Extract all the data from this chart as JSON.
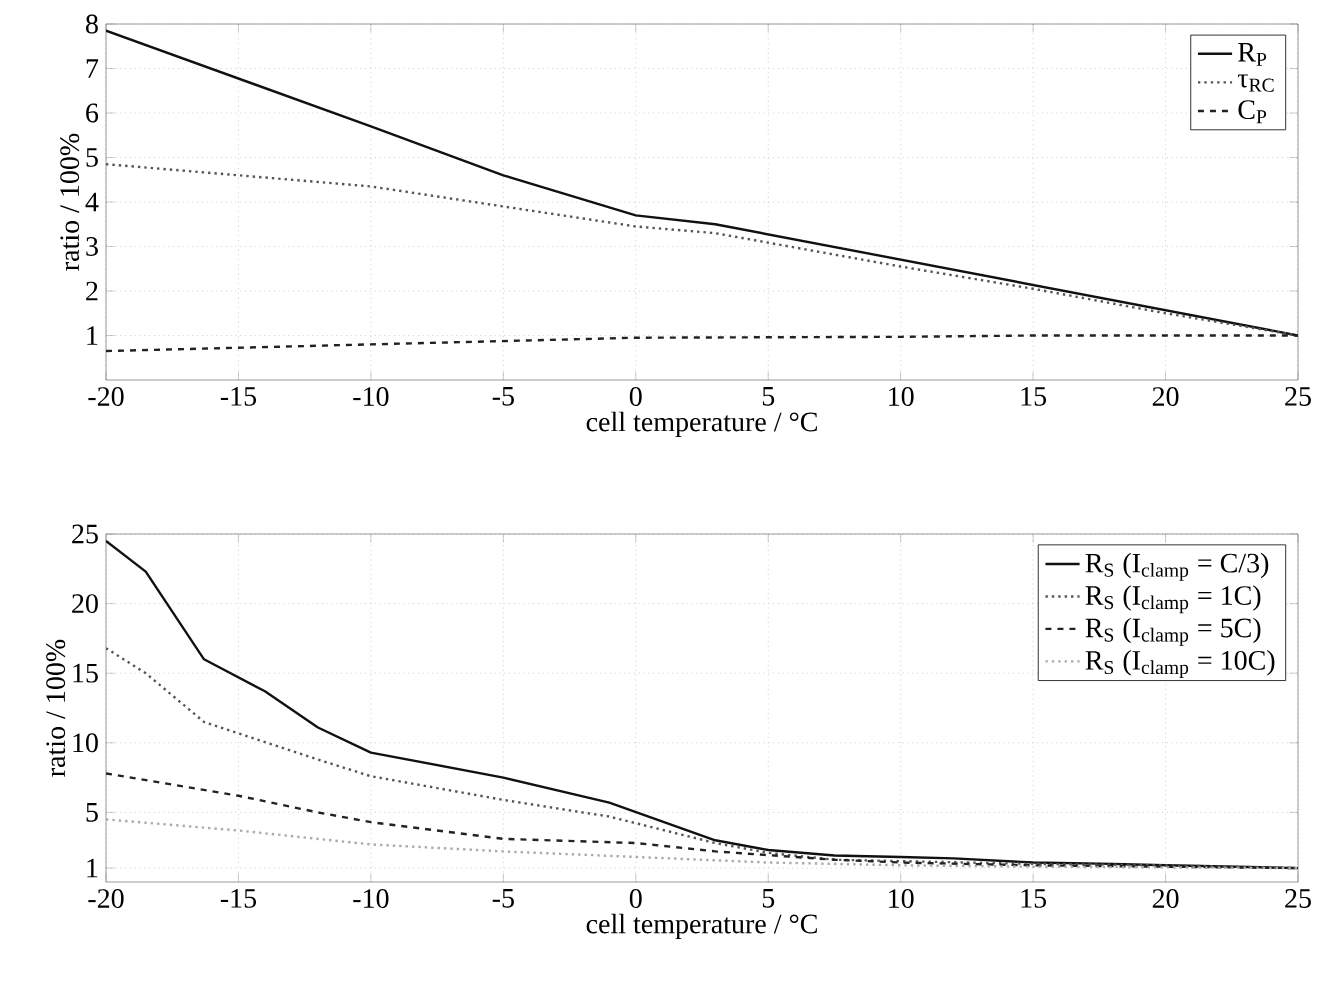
{
  "chart_data": [
    {
      "type": "line",
      "xlabel": "cell temperature / °C",
      "ylabel": "ratio / 100%",
      "xlim": [
        -20,
        25
      ],
      "ylim": [
        0,
        8
      ],
      "xticks": [
        -20,
        -15,
        -10,
        -5,
        0,
        5,
        10,
        15,
        20,
        25
      ],
      "yticks": [
        1,
        2,
        3,
        4,
        5,
        6,
        7,
        8
      ],
      "grid": true,
      "legend": "top right",
      "series": [
        {
          "name": "R$_{P}$",
          "color": "#111111",
          "line_style": "solid",
          "x": [
            -20,
            -10,
            -5,
            0,
            3,
            25
          ],
          "values": [
            7.85,
            5.7,
            4.6,
            3.7,
            3.5,
            1.0
          ]
        },
        {
          "name": "τ$_{RC}$",
          "color": "#555555",
          "line_style": "dotted",
          "x": [
            -20,
            -10,
            -5,
            0,
            3,
            10,
            15,
            20,
            25
          ],
          "values": [
            4.85,
            4.35,
            3.9,
            3.45,
            3.3,
            2.55,
            2.05,
            1.5,
            1.0
          ]
        },
        {
          "name": "C$_{P}$",
          "color": "#222222",
          "line_style": "dashed",
          "x": [
            -20,
            -10,
            0,
            10,
            15,
            25
          ],
          "values": [
            0.65,
            0.8,
            0.95,
            0.97,
            1.0,
            1.0
          ]
        }
      ]
    },
    {
      "type": "line",
      "xlabel": "cell temperature / °C",
      "ylabel": "ratio / 100%",
      "xlim": [
        -20,
        25
      ],
      "ylim": [
        0,
        25
      ],
      "xticks": [
        -20,
        -15,
        -10,
        -5,
        0,
        5,
        10,
        15,
        20,
        25
      ],
      "yticks": [
        1,
        5,
        10,
        15,
        20,
        25
      ],
      "grid": true,
      "legend": "top right",
      "series": [
        {
          "name": "R$_{S}$ (I$_{clamp}$ = C/3)",
          "color": "#111111",
          "line_style": "solid",
          "x": [
            -20,
            -18.5,
            -16.3,
            -14,
            -12,
            -10,
            -5,
            -1,
            3,
            5,
            7.5,
            10,
            12,
            15,
            18,
            20,
            25
          ],
          "values": [
            24.5,
            22.3,
            16.0,
            13.7,
            11.1,
            9.3,
            7.5,
            5.7,
            3.0,
            2.3,
            1.9,
            1.8,
            1.7,
            1.4,
            1.3,
            1.2,
            1.0
          ]
        },
        {
          "name": "R$_{S}$ (I$_{clamp}$ = 1C)",
          "color": "#555555",
          "line_style": "dotted",
          "x": [
            -20,
            -18.5,
            -16.3,
            -12,
            -10,
            -5,
            -1,
            3,
            5,
            7.5,
            10,
            15,
            20,
            25
          ],
          "values": [
            16.8,
            15.0,
            11.5,
            8.8,
            7.6,
            5.9,
            4.7,
            2.8,
            2.1,
            1.6,
            1.5,
            1.3,
            1.2,
            1.0
          ]
        },
        {
          "name": "R$_{S}$ (I$_{clamp}$ = 5C)",
          "color": "#222222",
          "line_style": "dashed",
          "x": [
            -20,
            -15,
            -12,
            -10,
            -5,
            0,
            3,
            7.5,
            10,
            15,
            20,
            25
          ],
          "values": [
            7.8,
            6.2,
            5.0,
            4.3,
            3.1,
            2.8,
            2.2,
            1.6,
            1.4,
            1.2,
            1.1,
            1.0
          ]
        },
        {
          "name": "R$_{S}$ (I$_{clamp}$ = 10C)",
          "color": "#aaaaaa",
          "line_style": "dotted",
          "x": [
            -20,
            -15,
            -10,
            -5,
            0,
            5,
            10,
            15,
            20,
            25
          ],
          "values": [
            4.5,
            3.7,
            2.7,
            2.2,
            1.8,
            1.4,
            1.2,
            1.1,
            1.05,
            1.0
          ]
        }
      ]
    }
  ]
}
